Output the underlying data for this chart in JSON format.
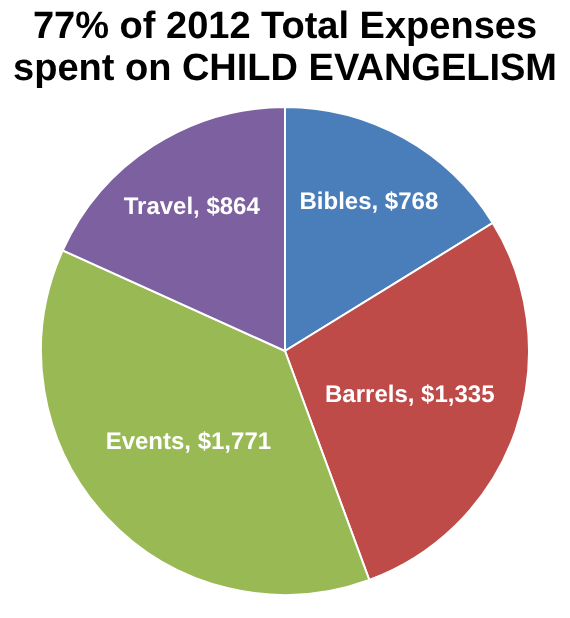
{
  "chart_data": {
    "type": "pie",
    "title": "77% of 2012 Total Expenses spent on CHILD EVANGELISM",
    "categories": [
      "Bibles",
      "Barrels",
      "Events",
      "Travel"
    ],
    "values": [
      768,
      1335,
      1771,
      864
    ],
    "colors": [
      "#4a7ebb",
      "#be4b48",
      "#98b954",
      "#7d60a0"
    ],
    "value_labels": [
      "$768",
      "$1,335",
      "$1,771",
      "$864"
    ],
    "legend": false
  }
}
